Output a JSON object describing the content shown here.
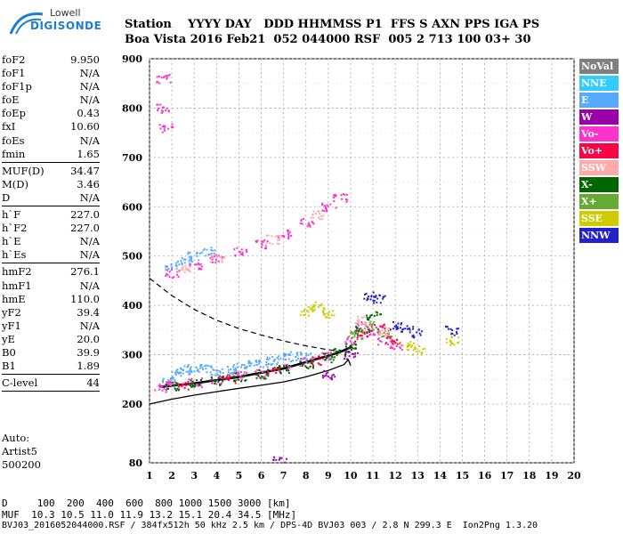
{
  "logo": {
    "line1": "Lowell",
    "line2": "DIGISONDE"
  },
  "header": {
    "row1": "Station    YYYY DAY   DDD HHMMSS P1  FFS S AXN PPS IGA PS",
    "row2": "Boa Vista 2016 Feb21  052 044000 RSF  005 2 713 100 03+ 30"
  },
  "params": {
    "group1": [
      {
        "k": "foF2",
        "v": "9.950"
      },
      {
        "k": "foF1",
        "v": "N/A"
      },
      {
        "k": "foF1p",
        "v": "N/A"
      },
      {
        "k": "foE",
        "v": "N/A"
      },
      {
        "k": "foEp",
        "v": "0.43"
      },
      {
        "k": "fxI",
        "v": "10.60"
      },
      {
        "k": "foEs",
        "v": "N/A"
      },
      {
        "k": "fmin",
        "v": "1.65"
      }
    ],
    "group2": [
      {
        "k": "MUF(D)",
        "v": "34.47"
      },
      {
        "k": "M(D)",
        "v": "3.46"
      },
      {
        "k": "D",
        "v": "N/A"
      }
    ],
    "group3": [
      {
        "k": "h`F",
        "v": "227.0"
      },
      {
        "k": "h`F2",
        "v": "227.0"
      },
      {
        "k": "h`E",
        "v": "N/A"
      },
      {
        "k": "h`Es",
        "v": "N/A"
      }
    ],
    "group4": [
      {
        "k": "hmF2",
        "v": "276.1"
      },
      {
        "k": "hmF1",
        "v": "N/A"
      },
      {
        "k": "hmE",
        "v": "110.0"
      },
      {
        "k": "yF2",
        "v": "39.4"
      },
      {
        "k": "yF1",
        "v": "N/A"
      },
      {
        "k": "yE",
        "v": "20.0"
      },
      {
        "k": "B0",
        "v": "39.9"
      },
      {
        "k": "B1",
        "v": "1.89"
      }
    ],
    "group5": [
      {
        "k": "C-level",
        "v": "44"
      }
    ]
  },
  "auto": {
    "line1": "Auto:",
    "line2": "Artist5",
    "line3": "500200"
  },
  "legend": [
    {
      "label": "NoVal",
      "color": "#808080"
    },
    {
      "label": "NNE",
      "color": "#33ccff"
    },
    {
      "label": "E",
      "color": "#55aaff"
    },
    {
      "label": "W",
      "color": "#9900aa"
    },
    {
      "label": "Vo-",
      "color": "#ff33cc"
    },
    {
      "label": "Vo+",
      "color": "#ff0044"
    },
    {
      "label": "SSW",
      "color": "#ffaaaa"
    },
    {
      "label": "X-",
      "color": "#006600"
    },
    {
      "label": "X+",
      "color": "#66aa33"
    },
    {
      "label": "SSE",
      "color": "#cccc00"
    },
    {
      "label": "NNW",
      "color": "#2222cc"
    }
  ],
  "footer": {
    "line1": "D     100  200  400  600  800 1000 1500 3000 [km]",
    "line2": "MUF  10.3 10.5 11.0 11.9 13.2 15.1 20.4 34.5 [MHz]",
    "line3": "BVJ03_2016052044000.RSF / 384fx512h 50 kHz 2.5 km / DPS-4D BVJ03 003 / 2.8 N 299.3 E  Ion2Png 1.3.20"
  },
  "chart_data": {
    "type": "scatter",
    "xlim": [
      1,
      20
    ],
    "ylim": [
      80,
      900
    ],
    "x_ticks": [
      1,
      2,
      3,
      4,
      5,
      6,
      7,
      8,
      9,
      10,
      11,
      12,
      13,
      14,
      15,
      16,
      17,
      18,
      19,
      20
    ],
    "y_ticks": [
      80,
      200,
      300,
      400,
      500,
      600,
      700,
      800,
      900
    ],
    "grid": true,
    "legend_position": "right",
    "series": [
      {
        "name": "E",
        "color": "#55aaff",
        "points": [
          [
            1.8,
            245
          ],
          [
            2.2,
            262
          ],
          [
            2.5,
            270
          ],
          [
            3.0,
            275
          ],
          [
            3.5,
            272
          ],
          [
            4.0,
            268
          ],
          [
            4.5,
            270
          ],
          [
            5.0,
            275
          ],
          [
            5.5,
            280
          ],
          [
            6.0,
            285
          ],
          [
            6.5,
            290
          ],
          [
            7.0,
            295
          ],
          [
            7.5,
            298
          ],
          [
            8.0,
            300
          ],
          [
            2.0,
            480
          ],
          [
            2.5,
            490
          ],
          [
            3.0,
            500
          ],
          [
            3.6,
            510
          ]
        ]
      },
      {
        "name": "Vo-",
        "color": "#ff33cc",
        "points": [
          [
            1.5,
            235
          ],
          [
            2.0,
            240
          ],
          [
            3.0,
            245
          ],
          [
            4.0,
            250
          ],
          [
            5.0,
            258
          ],
          [
            6.0,
            265
          ],
          [
            7.0,
            275
          ],
          [
            8.0,
            285
          ],
          [
            9.0,
            300
          ],
          [
            10.0,
            330
          ],
          [
            10.5,
            360
          ],
          [
            11.0,
            350
          ],
          [
            11.5,
            330
          ],
          [
            12.0,
            320
          ],
          [
            2.0,
            465
          ],
          [
            3.0,
            480
          ],
          [
            4.0,
            495
          ],
          [
            5.0,
            510
          ],
          [
            6.0,
            525
          ],
          [
            7.0,
            545
          ],
          [
            8.0,
            570
          ],
          [
            9.0,
            600
          ],
          [
            9.5,
            620
          ],
          [
            1.6,
            860
          ],
          [
            1.6,
            800
          ],
          [
            1.7,
            760
          ]
        ]
      },
      {
        "name": "Vo+",
        "color": "#ff0044",
        "points": [
          [
            2.5,
            240
          ],
          [
            4.5,
            252
          ],
          [
            6.5,
            270
          ],
          [
            8.5,
            290
          ],
          [
            10.5,
            340
          ],
          [
            11.2,
            355
          ],
          [
            11.8,
            330
          ]
        ]
      },
      {
        "name": "X-",
        "color": "#006600",
        "points": [
          [
            2.0,
            238
          ],
          [
            3.0,
            242
          ],
          [
            4.0,
            248
          ],
          [
            5.0,
            256
          ],
          [
            6.0,
            262
          ],
          [
            7.0,
            272
          ],
          [
            8.0,
            282
          ],
          [
            9.0,
            295
          ],
          [
            9.5,
            305
          ],
          [
            10.0,
            320
          ],
          [
            10.5,
            350
          ],
          [
            11.0,
            380
          ]
        ]
      },
      {
        "name": "X+",
        "color": "#66aa33",
        "points": [
          [
            10.2,
            340
          ],
          [
            10.8,
            360
          ],
          [
            11.5,
            345
          ]
        ]
      },
      {
        "name": "SSW",
        "color": "#ffaaaa",
        "points": [
          [
            2.5,
            475
          ],
          [
            4.0,
            498
          ],
          [
            6.5,
            535
          ],
          [
            8.5,
            585
          ],
          [
            10.5,
            370
          ],
          [
            11.5,
            350
          ]
        ]
      },
      {
        "name": "SSE",
        "color": "#cccc00",
        "points": [
          [
            8.0,
            390
          ],
          [
            8.5,
            400
          ],
          [
            9.0,
            385
          ],
          [
            12.5,
            320
          ],
          [
            13.0,
            310
          ],
          [
            14.5,
            330
          ]
        ]
      },
      {
        "name": "NNW",
        "color": "#2222cc",
        "points": [
          [
            10.8,
            420
          ],
          [
            11.2,
            415
          ],
          [
            12.0,
            360
          ],
          [
            12.5,
            355
          ],
          [
            13.0,
            345
          ],
          [
            14.5,
            350
          ]
        ]
      },
      {
        "name": "W",
        "color": "#9900aa",
        "points": [
          [
            6.8,
            85
          ],
          [
            9.0,
            260
          ],
          [
            10.0,
            300
          ]
        ]
      }
    ],
    "profile_curve": [
      [
        1.0,
        200
      ],
      [
        2.0,
        210
      ],
      [
        3.0,
        218
      ],
      [
        4.0,
        225
      ],
      [
        5.0,
        232
      ],
      [
        6.0,
        238
      ],
      [
        7.0,
        245
      ],
      [
        8.0,
        255
      ],
      [
        9.0,
        268
      ],
      [
        9.7,
        280
      ],
      [
        9.9,
        290
      ],
      [
        10.0,
        278
      ]
    ],
    "muf_curve_dashed": [
      [
        1.0,
        455
      ],
      [
        2.0,
        420
      ],
      [
        3.0,
        392
      ],
      [
        4.0,
        370
      ],
      [
        5.0,
        353
      ],
      [
        6.0,
        340
      ],
      [
        7.0,
        328
      ],
      [
        8.0,
        318
      ],
      [
        9.0,
        310
      ],
      [
        10.0,
        305
      ]
    ],
    "trace_curve": [
      [
        1.5,
        235
      ],
      [
        3.0,
        242
      ],
      [
        5.0,
        255
      ],
      [
        7.0,
        272
      ],
      [
        8.0,
        285
      ],
      [
        9.0,
        298
      ],
      [
        9.5,
        305
      ],
      [
        10.0,
        315
      ]
    ]
  }
}
